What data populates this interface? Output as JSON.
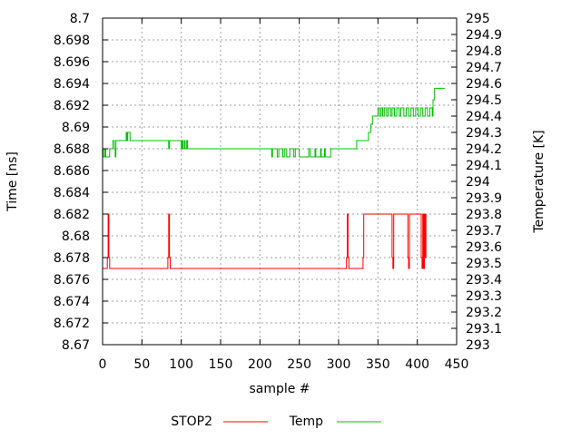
{
  "chart_data": {
    "type": "line",
    "title": "",
    "xlabel": "sample #",
    "ylabel": "Time [ns]",
    "y2label": "Temperature [K]",
    "xlim": [
      0,
      450
    ],
    "ylim": [
      8.67,
      8.7
    ],
    "y2lim": [
      293,
      295
    ],
    "xticks": [
      "0",
      "50",
      "100",
      "150",
      "200",
      "250",
      "300",
      "350",
      "400",
      "450"
    ],
    "yticks": [
      "8.67",
      "8.672",
      "8.674",
      "8.676",
      "8.678",
      "8.68",
      "8.682",
      "8.684",
      "8.686",
      "8.688",
      "8.69",
      "8.692",
      "8.694",
      "8.696",
      "8.698",
      "8.7"
    ],
    "y2ticks": [
      "293",
      "293.1",
      "293.2",
      "293.3",
      "293.4",
      "293.5",
      "293.6",
      "293.7",
      "293.8",
      "293.9",
      "294",
      "294.1",
      "294.2",
      "294.3",
      "294.4",
      "294.5",
      "294.6",
      "294.7",
      "294.8",
      "294.9",
      "295"
    ],
    "grid": true,
    "legend_position": "bottom",
    "step": true,
    "series": [
      {
        "name": "STOP2",
        "axis": "left",
        "color": "#ff0000",
        "points": [
          [
            0,
            8.677
          ],
          [
            6,
            8.678
          ],
          [
            7,
            8.682
          ],
          [
            8,
            8.678
          ],
          [
            9,
            8.677
          ],
          [
            83,
            8.678
          ],
          [
            84,
            8.682
          ],
          [
            85,
            8.678
          ],
          [
            86,
            8.677
          ],
          [
            310,
            8.678
          ],
          [
            311,
            8.682
          ],
          [
            312,
            8.678
          ],
          [
            313,
            8.677
          ],
          [
            331,
            8.678
          ],
          [
            332,
            8.682
          ],
          [
            367,
            8.682
          ],
          [
            368,
            8.678
          ],
          [
            369,
            8.677
          ],
          [
            370,
            8.682
          ],
          [
            387,
            8.682
          ],
          [
            388,
            8.678
          ],
          [
            389,
            8.677
          ],
          [
            390,
            8.682
          ],
          [
            404,
            8.682
          ],
          [
            405,
            8.678
          ],
          [
            406,
            8.677
          ],
          [
            407,
            8.682
          ],
          [
            408,
            8.677
          ],
          [
            409,
            8.682
          ],
          [
            410,
            8.678
          ],
          [
            411,
            8.682
          ]
        ]
      },
      {
        "name": "Temp",
        "axis": "right",
        "color": "#00c000",
        "points": [
          [
            0,
            294.2
          ],
          [
            1,
            294.15
          ],
          [
            3,
            294.2
          ],
          [
            4,
            294.15
          ],
          [
            9,
            294.2
          ],
          [
            13,
            294.25
          ],
          [
            15,
            294.2
          ],
          [
            16,
            294.15
          ],
          [
            17,
            294.25
          ],
          [
            30,
            294.3
          ],
          [
            31,
            294.25
          ],
          [
            32,
            294.3
          ],
          [
            35,
            294.25
          ],
          [
            84,
            294.2
          ],
          [
            85,
            294.25
          ],
          [
            100,
            294.2
          ],
          [
            101,
            294.25
          ],
          [
            102,
            294.2
          ],
          [
            104,
            294.25
          ],
          [
            105,
            294.2
          ],
          [
            107,
            294.25
          ],
          [
            108,
            294.2
          ],
          [
            215,
            294.15
          ],
          [
            216,
            294.2
          ],
          [
            222,
            294.15
          ],
          [
            224,
            294.2
          ],
          [
            229,
            294.15
          ],
          [
            231,
            294.2
          ],
          [
            234,
            294.15
          ],
          [
            238,
            294.2
          ],
          [
            243,
            294.15
          ],
          [
            245,
            294.2
          ],
          [
            250,
            294.15
          ],
          [
            262,
            294.2
          ],
          [
            264,
            294.15
          ],
          [
            270,
            294.2
          ],
          [
            271,
            294.15
          ],
          [
            277,
            294.2
          ],
          [
            278,
            294.15
          ],
          [
            282,
            294.2
          ],
          [
            283,
            294.15
          ],
          [
            290,
            294.2
          ],
          [
            323,
            294.25
          ],
          [
            338,
            294.3
          ],
          [
            341,
            294.35
          ],
          [
            343,
            294.4
          ],
          [
            350,
            294.45
          ],
          [
            352,
            294.4
          ],
          [
            354,
            294.45
          ],
          [
            356,
            294.4
          ],
          [
            358,
            294.45
          ],
          [
            361,
            294.4
          ],
          [
            363,
            294.45
          ],
          [
            366,
            294.4
          ],
          [
            368,
            294.45
          ],
          [
            371,
            294.4
          ],
          [
            374,
            294.45
          ],
          [
            377,
            294.4
          ],
          [
            379,
            294.45
          ],
          [
            383,
            294.4
          ],
          [
            386,
            294.45
          ],
          [
            389,
            294.4
          ],
          [
            392,
            294.45
          ],
          [
            395,
            294.4
          ],
          [
            398,
            294.45
          ],
          [
            401,
            294.4
          ],
          [
            404,
            294.45
          ],
          [
            407,
            294.4
          ],
          [
            410,
            294.45
          ],
          [
            413,
            294.4
          ],
          [
            416,
            294.45
          ],
          [
            419,
            294.4
          ],
          [
            420,
            294.5
          ],
          [
            422,
            294.57
          ],
          [
            435,
            294.57
          ]
        ]
      }
    ]
  }
}
